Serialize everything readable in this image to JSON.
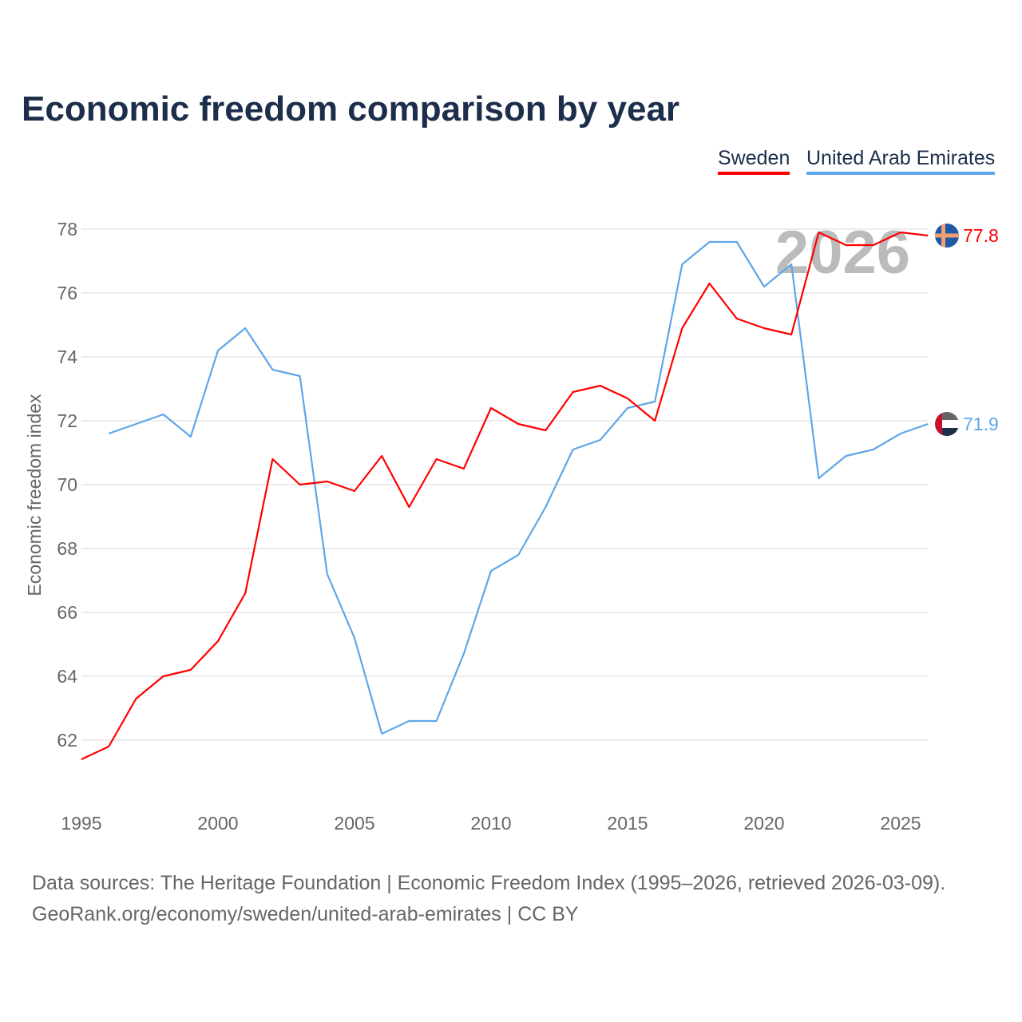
{
  "chart_data": {
    "type": "line",
    "title": "Economic freedom comparison by year",
    "xlabel": "",
    "ylabel": "Economic freedom index",
    "xlim": [
      1995,
      2026
    ],
    "ylim": [
      60.5,
      79
    ],
    "x_ticks": [
      "1995",
      "2000",
      "2005",
      "2010",
      "2015",
      "2020",
      "2025"
    ],
    "y_ticks": [
      "62",
      "64",
      "66",
      "68",
      "70",
      "72",
      "74",
      "76",
      "78"
    ],
    "grid": true,
    "legend_position": "top-right",
    "year_watermark": "2026",
    "series": [
      {
        "name": "Sweden",
        "color": "#ff0000",
        "end_label": "77.8",
        "x": [
          1995,
          1996,
          1997,
          1998,
          1999,
          2000,
          2001,
          2002,
          2003,
          2004,
          2005,
          2006,
          2007,
          2008,
          2009,
          2010,
          2011,
          2012,
          2013,
          2014,
          2015,
          2016,
          2017,
          2018,
          2019,
          2020,
          2021,
          2022,
          2023,
          2024,
          2025,
          2026
        ],
        "values": [
          61.4,
          61.8,
          63.3,
          64.0,
          64.2,
          65.1,
          66.6,
          70.8,
          70.0,
          70.1,
          69.8,
          70.9,
          69.3,
          70.8,
          70.5,
          72.4,
          71.9,
          71.7,
          72.9,
          73.1,
          72.7,
          72.0,
          74.9,
          76.3,
          75.2,
          74.9,
          74.7,
          77.9,
          77.5,
          77.5,
          77.9,
          77.8
        ]
      },
      {
        "name": "United Arab Emirates",
        "color": "#5fa6e8",
        "end_label": "71.9",
        "x": [
          1996,
          1997,
          1998,
          1999,
          2000,
          2001,
          2002,
          2003,
          2004,
          2005,
          2006,
          2007,
          2008,
          2009,
          2010,
          2011,
          2012,
          2013,
          2014,
          2015,
          2016,
          2017,
          2018,
          2019,
          2020,
          2021,
          2022,
          2023,
          2024,
          2025,
          2026
        ],
        "values": [
          71.6,
          71.9,
          72.2,
          71.5,
          74.2,
          74.9,
          73.6,
          73.4,
          67.2,
          65.2,
          62.2,
          62.6,
          62.6,
          64.7,
          67.3,
          67.8,
          69.3,
          71.1,
          71.4,
          72.4,
          72.6,
          76.9,
          77.6,
          77.6,
          76.2,
          76.9,
          70.2,
          70.9,
          71.1,
          71.6,
          71.9
        ]
      }
    ]
  },
  "footer": {
    "line1": "Data sources: The Heritage Foundation | Economic Freedom Index (1995–2026, retrieved 2026-03-09).",
    "line2": "GeoRank.org/economy/sweden/united-arab-emirates | CC BY"
  }
}
